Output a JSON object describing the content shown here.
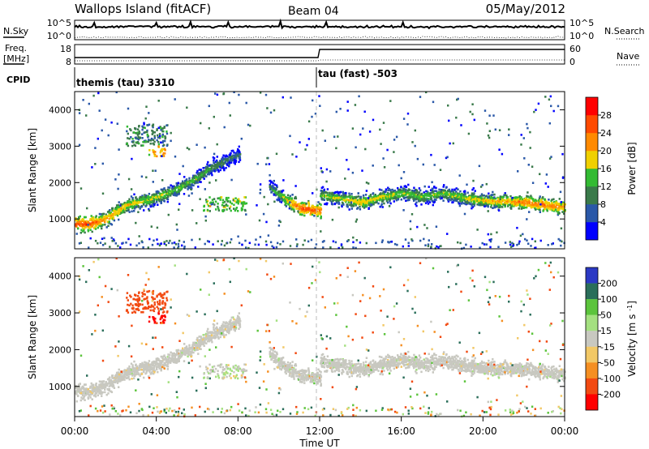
{
  "header": {
    "title": "Wallops Island (fitACF)",
    "beam": "Beam 04",
    "date": "05/May/2012"
  },
  "status_panels": {
    "nsky_label": "N.Sky",
    "nsky_ticks": [
      "10^5",
      "10^0"
    ],
    "nsearch_label": "N.Search",
    "nsearch_ticks": [
      "10^5",
      "10^0"
    ],
    "freq_label": "Freq.",
    "freq_unit": "[MHz]",
    "freq_ticks": [
      "18",
      "8"
    ],
    "nave_label": "Nave",
    "nave_ticks": [
      "60",
      "0"
    ],
    "cpid_label": "CPID",
    "cpid_segments": [
      "themis (tau) 3310",
      "tau (fast) -503"
    ]
  },
  "axes": {
    "range_label": "Slant Range [km]",
    "time_label": "Time UT",
    "range_ticks": [
      "1000",
      "2000",
      "3000",
      "4000"
    ],
    "time_ticks": [
      "00:00",
      "04:00",
      "08:00",
      "12:00",
      "16:00",
      "20:00",
      "00:00"
    ]
  },
  "power_scale": {
    "label": "Power [dB]",
    "ticks": [
      "4",
      "8",
      "12",
      "16",
      "20",
      "24",
      "28"
    ],
    "colors": [
      "#0000ff",
      "#2a58a8",
      "#3a7a4a",
      "#33bb33",
      "#f0d000",
      "#ff8a00",
      "#ff4a00",
      "#ff0000"
    ]
  },
  "velocity_scale": {
    "label": "Velocity [m s^-1]",
    "ticks": [
      "200",
      "100",
      "50",
      "15",
      "-15",
      "-50",
      "-100",
      "-200"
    ],
    "colors": [
      "#2b39c4",
      "#2a6e5a",
      "#5cc43c",
      "#a4e080",
      "#c8c8c0",
      "#f2c866",
      "#f58f22",
      "#f24a12",
      "#ff0000"
    ]
  },
  "chart_data": {
    "type": "heatmap",
    "x": {
      "label": "Time UT",
      "unit": "h",
      "range": [
        0,
        24
      ]
    },
    "y": {
      "label": "Slant Range [km]",
      "unit": "km",
      "range": [
        180,
        4500
      ]
    },
    "mode_change_time_h": 12,
    "backscatter_bands": [
      {
        "t": [
          0.0,
          0.5,
          1.0,
          1.5,
          2.0,
          2.5,
          3.0,
          3.5,
          4.0,
          4.5,
          5.0,
          5.5,
          6.0,
          6.5,
          7.0,
          7.5,
          8.0
        ],
        "range_km": [
          850,
          860,
          900,
          1000,
          1200,
          1380,
          1450,
          1520,
          1600,
          1700,
          1820,
          1980,
          2150,
          2350,
          2500,
          2650,
          2750
        ],
        "power_db": [
          26,
          27,
          25,
          22,
          22,
          20,
          19,
          18,
          18,
          17,
          16,
          16,
          15,
          14,
          12,
          11,
          10
        ]
      },
      {
        "t": [
          9.5,
          10.0,
          10.5,
          11.0,
          11.5,
          12.0
        ],
        "range_km": [
          1850,
          1650,
          1450,
          1300,
          1250,
          1220
        ],
        "power_db": [
          12,
          16,
          22,
          26,
          27,
          25
        ]
      },
      {
        "t": [
          12.0,
          13.0,
          14.0,
          15.0,
          16.0,
          17.0,
          18.0,
          19.0,
          20.0,
          21.0,
          22.0,
          23.0,
          24.0
        ],
        "range_km": [
          1650,
          1550,
          1450,
          1600,
          1700,
          1600,
          1700,
          1580,
          1500,
          1480,
          1450,
          1380,
          1320
        ],
        "power_db": [
          16,
          18,
          20,
          18,
          17,
          16,
          16,
          18,
          20,
          22,
          24,
          24,
          22
        ]
      }
    ],
    "clusters": [
      {
        "t": [
          2.5,
          4.5
        ],
        "range_km": [
          3000,
          3600
        ],
        "power_db": 10,
        "velocity_ms": -150
      },
      {
        "t": [
          3.6,
          4.4
        ],
        "range_km": [
          2700,
          3000
        ],
        "power_db": 20,
        "velocity_ms": -220
      },
      {
        "t": [
          6.2,
          8.4
        ],
        "range_km": [
          1200,
          1600
        ],
        "power_db": 14,
        "velocity_ms": 10
      }
    ],
    "ground_scatter_velocity_ms": [
      -15,
      15
    ]
  }
}
